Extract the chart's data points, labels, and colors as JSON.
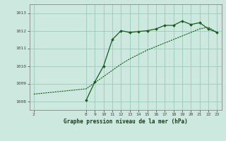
{
  "bg_color": "#cce8df",
  "grid_color": "#99ccbb",
  "line_color": "#1a5c1a",
  "title": "Graphe pression niveau de la mer (hPa)",
  "ylim": [
    1007.5,
    1013.5
  ],
  "xlim": [
    1.5,
    23.5
  ],
  "xticks": [
    2,
    8,
    9,
    10,
    11,
    12,
    13,
    14,
    15,
    16,
    17,
    18,
    19,
    20,
    21,
    22,
    23
  ],
  "yticks": [
    1008,
    1009,
    1010,
    1011,
    1012,
    1013
  ],
  "line1_x": [
    2,
    8,
    9,
    10,
    11,
    12,
    13,
    14,
    15,
    16,
    17,
    18,
    19,
    20,
    21,
    22,
    23
  ],
  "line1_y": [
    1008.4,
    1008.7,
    1009.05,
    1009.4,
    1009.75,
    1010.1,
    1010.4,
    1010.65,
    1010.9,
    1011.1,
    1011.3,
    1011.5,
    1011.7,
    1011.9,
    1012.1,
    1012.2,
    1011.9
  ],
  "line2_x": [
    8,
    9,
    10,
    11,
    12,
    13,
    14,
    15,
    16,
    17,
    18,
    19,
    20,
    21,
    22,
    23
  ],
  "line2_y": [
    1008.05,
    1009.1,
    1010.0,
    1011.5,
    1012.0,
    1011.9,
    1011.95,
    1012.0,
    1012.1,
    1012.3,
    1012.3,
    1012.55,
    1012.35,
    1012.45,
    1012.1,
    1011.9
  ]
}
